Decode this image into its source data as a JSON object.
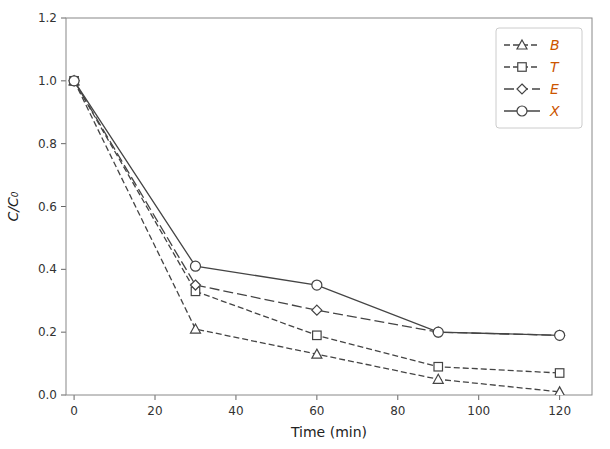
{
  "chart_data": {
    "type": "line",
    "x": [
      0,
      30,
      60,
      90,
      120
    ],
    "series": [
      {
        "name": "B",
        "color": "#444444",
        "marker": "triangle",
        "line_style": "dashed",
        "values": [
          1.0,
          0.21,
          0.13,
          0.05,
          0.01
        ]
      },
      {
        "name": "T",
        "color": "#444444",
        "marker": "square",
        "line_style": "dashed",
        "values": [
          1.0,
          0.33,
          0.19,
          0.09,
          0.07
        ]
      },
      {
        "name": "E",
        "color": "#444444",
        "marker": "diamond",
        "line_style": "long-dashed",
        "values": [
          1.0,
          0.35,
          0.27,
          0.2,
          0.19
        ]
      },
      {
        "name": "X",
        "color": "#444444",
        "marker": "circle",
        "line_style": "solid",
        "values": [
          1.0,
          0.41,
          0.35,
          0.2,
          0.19
        ]
      }
    ],
    "xlabel": "Time (min)",
    "ylabel": "C/C₀",
    "xlim": [
      -2,
      128
    ],
    "ylim": [
      0.0,
      1.2
    ],
    "xticks": [
      0,
      20,
      40,
      60,
      80,
      100,
      120
    ],
    "yticks": [
      {
        "value": 0.0,
        "label": "0.0"
      },
      0.2,
      0.4,
      0.6,
      0.8,
      {
        "value": 1.0,
        "label": "1.0"
      },
      1.2
    ],
    "grid": false,
    "legend": "upper right"
  }
}
